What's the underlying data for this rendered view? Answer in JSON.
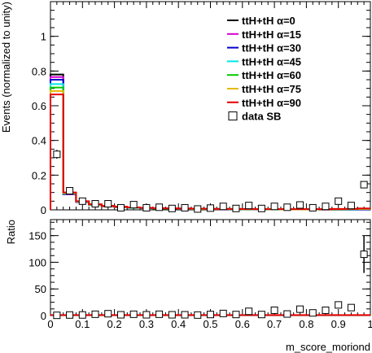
{
  "chart_data": [
    {
      "type": "histogram-step",
      "ylabel": "Events (normalized to unity)",
      "xlim": [
        0,
        1
      ],
      "ylim": [
        0,
        1.2
      ],
      "xticks": [
        0,
        0.1,
        0.2,
        0.3,
        0.4,
        0.5,
        0.6,
        0.7,
        0.8,
        0.9,
        1
      ],
      "yticks": [
        0,
        0.2,
        0.4,
        0.6,
        0.8,
        1
      ],
      "grid": false,
      "legend_position": "top-right",
      "bin_edges": [
        0,
        0.04,
        0.08,
        0.12,
        0.16,
        0.2,
        0.24,
        0.28,
        0.32,
        0.36,
        0.4,
        0.44,
        0.48,
        0.52,
        0.56,
        0.6,
        0.64,
        0.68,
        0.72,
        0.76,
        0.8,
        0.84,
        0.88,
        0.92,
        0.96,
        1.0
      ],
      "series": [
        {
          "name": "ttH+tH α=0",
          "color": "#000000",
          "values": [
            0.78,
            0.09,
            0.045,
            0.028,
            0.02,
            0.015,
            0.012,
            0.01,
            0.008,
            0.007,
            0.006,
            0.005,
            0.005,
            0.004,
            0.004,
            0.004,
            0.003,
            0.003,
            0.003,
            0.003,
            0.003,
            0.002,
            0.002,
            0.002,
            0.002
          ]
        },
        {
          "name": "ttH+tH α=15",
          "color": "#d400d4",
          "values": [
            0.765,
            0.09,
            0.045,
            0.028,
            0.02,
            0.015,
            0.012,
            0.01,
            0.008,
            0.007,
            0.006,
            0.005,
            0.005,
            0.004,
            0.004,
            0.004,
            0.003,
            0.003,
            0.003,
            0.003,
            0.003,
            0.002,
            0.002,
            0.002,
            0.002
          ]
        },
        {
          "name": "ttH+tH α=30",
          "color": "#0000cc",
          "values": [
            0.75,
            0.092,
            0.046,
            0.029,
            0.021,
            0.016,
            0.012,
            0.01,
            0.008,
            0.007,
            0.006,
            0.005,
            0.005,
            0.004,
            0.004,
            0.004,
            0.003,
            0.003,
            0.003,
            0.003,
            0.003,
            0.002,
            0.002,
            0.002,
            0.003
          ]
        },
        {
          "name": "ttH+tH α=45",
          "color": "#00e6e6",
          "values": [
            0.725,
            0.094,
            0.047,
            0.029,
            0.021,
            0.016,
            0.013,
            0.011,
            0.009,
            0.008,
            0.007,
            0.006,
            0.005,
            0.005,
            0.004,
            0.004,
            0.004,
            0.003,
            0.003,
            0.003,
            0.003,
            0.003,
            0.003,
            0.003,
            0.004
          ]
        },
        {
          "name": "ttH+tH α=60",
          "color": "#00cc00",
          "values": [
            0.705,
            0.096,
            0.048,
            0.03,
            0.022,
            0.017,
            0.013,
            0.011,
            0.009,
            0.008,
            0.007,
            0.006,
            0.005,
            0.005,
            0.004,
            0.004,
            0.004,
            0.003,
            0.003,
            0.003,
            0.003,
            0.003,
            0.003,
            0.004,
            0.005
          ]
        },
        {
          "name": "ttH+tH α=75",
          "color": "#e6b800",
          "values": [
            0.685,
            0.098,
            0.049,
            0.031,
            0.022,
            0.017,
            0.014,
            0.011,
            0.009,
            0.008,
            0.007,
            0.006,
            0.006,
            0.005,
            0.005,
            0.004,
            0.004,
            0.004,
            0.003,
            0.003,
            0.003,
            0.003,
            0.004,
            0.005,
            0.006
          ]
        },
        {
          "name": "ttH+tH α=90",
          "color": "#e60000",
          "values": [
            0.665,
            0.1,
            0.05,
            0.032,
            0.023,
            0.018,
            0.014,
            0.012,
            0.01,
            0.009,
            0.008,
            0.007,
            0.006,
            0.005,
            0.005,
            0.005,
            0.004,
            0.004,
            0.004,
            0.004,
            0.004,
            0.004,
            0.005,
            0.006,
            0.008
          ]
        },
        {
          "name": "data SB",
          "color": "#000000",
          "marker": "open-square",
          "x": [
            0.02,
            0.06,
            0.1,
            0.14,
            0.18,
            0.22,
            0.26,
            0.3,
            0.34,
            0.38,
            0.42,
            0.46,
            0.5,
            0.54,
            0.58,
            0.62,
            0.66,
            0.7,
            0.74,
            0.78,
            0.82,
            0.86,
            0.9,
            0.94,
            0.98
          ],
          "values": [
            0.32,
            0.11,
            0.05,
            0.035,
            0.035,
            0.012,
            0.03,
            0.012,
            0.015,
            0.008,
            0.012,
            0.005,
            0.01,
            0.02,
            0.008,
            0.025,
            0.008,
            0.02,
            0.015,
            0.028,
            0.012,
            0.02,
            0.05,
            0.025,
            0.145
          ],
          "errors": [
            0.025,
            0.012,
            0.008,
            0.006,
            0.006,
            0.003,
            0.005,
            0.003,
            0.003,
            0.002,
            0.003,
            0.001,
            0.002,
            0.003,
            0.002,
            0.004,
            0.002,
            0.003,
            0.003,
            0.004,
            0.002,
            0.003,
            0.006,
            0.004,
            0.014
          ]
        }
      ]
    },
    {
      "type": "scatter",
      "ylabel": "Ratio",
      "xlabel": "m_score_moriond",
      "xlim": [
        0,
        1
      ],
      "ylim": [
        0,
        180
      ],
      "xticks": [
        0,
        0.1,
        0.2,
        0.3,
        0.4,
        0.5,
        0.6,
        0.7,
        0.8,
        0.9,
        1
      ],
      "xtick_labels": [
        "0",
        "0.1",
        "0.2",
        "0.3",
        "0.4",
        "0.5",
        "0.6",
        "0.7",
        "0.8",
        "0.9",
        "1"
      ],
      "yticks": [
        0,
        50,
        100,
        150
      ],
      "grid": false,
      "reference_line_color": "#e60000",
      "x": [
        0.02,
        0.06,
        0.1,
        0.14,
        0.18,
        0.22,
        0.26,
        0.3,
        0.34,
        0.38,
        0.42,
        0.46,
        0.5,
        0.54,
        0.58,
        0.62,
        0.66,
        0.7,
        0.74,
        0.78,
        0.82,
        0.86,
        0.9,
        0.94,
        0.98
      ],
      "values": [
        0.5,
        1.1,
        1.2,
        2.5,
        3.5,
        1.5,
        2.5,
        1.5,
        2.5,
        1.5,
        1.5,
        1,
        2,
        4,
        2,
        8,
        2,
        10,
        3,
        12,
        5,
        10,
        20,
        15,
        115
      ],
      "errors": [
        0,
        0,
        0,
        0,
        0,
        0,
        0,
        0,
        0,
        0,
        0,
        0,
        0,
        0,
        0,
        0,
        0,
        0,
        0,
        0,
        0,
        0,
        0,
        0,
        35
      ]
    }
  ]
}
